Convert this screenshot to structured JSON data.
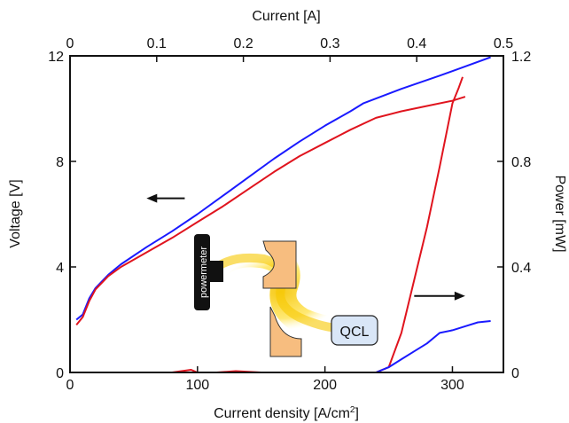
{
  "chart_data": {
    "type": "line",
    "xlabel_bottom": "Current density [A/cm",
    "xlabel_bottom_sup": "2",
    "xlabel_bottom_close": "]",
    "xlabel_top": "Current [A]",
    "ylabel_left": "Voltage [V]",
    "ylabel_right": "Power [mW]",
    "x_bottom": {
      "lim": [
        0,
        340
      ],
      "ticks": [
        0,
        100,
        200,
        300
      ],
      "tick_labels": [
        "0",
        "100",
        "200",
        "300"
      ]
    },
    "x_top": {
      "lim": [
        0,
        0.5
      ],
      "ticks": [
        0,
        0.1,
        0.2,
        0.3,
        0.4,
        0.5
      ],
      "tick_labels": [
        "0",
        "0.1",
        "0.2",
        "0.3",
        "0.4",
        "0.5"
      ]
    },
    "y_left": {
      "lim": [
        0,
        12
      ],
      "ticks": [
        0,
        4,
        8,
        12
      ],
      "tick_labels": [
        "0",
        "4",
        "8",
        "12"
      ]
    },
    "y_right": {
      "lim": [
        0,
        1.2
      ],
      "ticks": [
        0,
        0.4,
        0.8,
        1.2
      ],
      "tick_labels": [
        "0",
        "0.4",
        "0.8",
        "1.2"
      ]
    },
    "grid": false,
    "series": [
      {
        "axis": "left",
        "color": "#1a1aff",
        "points": [
          [
            5,
            2.0
          ],
          [
            10,
            2.2
          ],
          [
            15,
            2.8
          ],
          [
            20,
            3.2
          ],
          [
            30,
            3.7
          ],
          [
            40,
            4.1
          ],
          [
            60,
            4.75
          ],
          [
            80,
            5.35
          ],
          [
            100,
            6.0
          ],
          [
            120,
            6.7
          ],
          [
            140,
            7.4
          ],
          [
            160,
            8.1
          ],
          [
            180,
            8.75
          ],
          [
            200,
            9.35
          ],
          [
            220,
            9.9
          ],
          [
            230,
            10.2
          ],
          [
            260,
            10.75
          ],
          [
            290,
            11.25
          ],
          [
            310,
            11.6
          ],
          [
            330,
            11.95
          ]
        ]
      },
      {
        "axis": "left",
        "color": "#e0141e",
        "points": [
          [
            5,
            1.8
          ],
          [
            10,
            2.1
          ],
          [
            15,
            2.7
          ],
          [
            20,
            3.15
          ],
          [
            30,
            3.65
          ],
          [
            40,
            4.0
          ],
          [
            60,
            4.55
          ],
          [
            80,
            5.1
          ],
          [
            100,
            5.7
          ],
          [
            120,
            6.3
          ],
          [
            140,
            6.95
          ],
          [
            160,
            7.6
          ],
          [
            180,
            8.2
          ],
          [
            200,
            8.7
          ],
          [
            220,
            9.2
          ],
          [
            240,
            9.65
          ],
          [
            260,
            9.9
          ],
          [
            280,
            10.1
          ],
          [
            300,
            10.3
          ],
          [
            310,
            10.45
          ]
        ]
      },
      {
        "axis": "right",
        "color": "#e0141e",
        "points": [
          [
            0,
            0.0
          ],
          [
            20,
            0.0
          ],
          [
            40,
            0.0
          ],
          [
            60,
            0.0
          ],
          [
            80,
            0.0
          ],
          [
            95,
            0.01
          ],
          [
            100,
            0.0
          ],
          [
            115,
            0.0
          ],
          [
            130,
            0.005
          ],
          [
            150,
            0.0
          ],
          [
            170,
            0.0
          ],
          [
            180,
            0.0
          ],
          [
            240,
            0.0
          ],
          [
            250,
            0.02
          ],
          [
            260,
            0.15
          ],
          [
            270,
            0.35
          ],
          [
            280,
            0.55
          ],
          [
            290,
            0.78
          ],
          [
            300,
            1.02
          ],
          [
            305,
            1.08
          ],
          [
            308,
            1.12
          ]
        ]
      },
      {
        "axis": "right",
        "color": "#1a1aff",
        "points": [
          [
            240,
            0.0
          ],
          [
            250,
            0.02
          ],
          [
            260,
            0.05
          ],
          [
            270,
            0.08
          ],
          [
            280,
            0.11
          ],
          [
            290,
            0.15
          ],
          [
            300,
            0.16
          ],
          [
            310,
            0.175
          ],
          [
            320,
            0.19
          ],
          [
            330,
            0.195
          ]
        ]
      }
    ],
    "annotations": {
      "arrow_left": {
        "x_from": 90,
        "x_to": 60,
        "y": 6.6,
        "axis": "left"
      },
      "arrow_right": {
        "x_from": 270,
        "x_to": 310,
        "y": 0.29,
        "axis": "right"
      }
    },
    "inset": {
      "powermeter_label": "powermeter",
      "qcl_label": "QCL",
      "mirror_color": "#f7bd7f",
      "beam_color": "#ffe24a",
      "qcl_fill": "#d9e6f7"
    }
  }
}
